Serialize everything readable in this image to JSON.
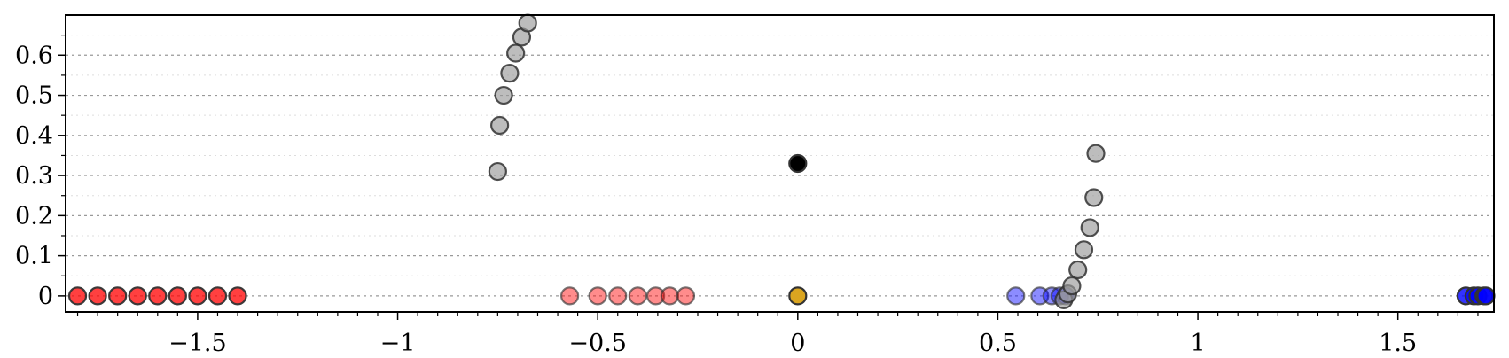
{
  "chart_data": {
    "type": "scatter",
    "title": "",
    "xlabel": "",
    "ylabel": "",
    "xlim": [
      -1.83,
      1.74
    ],
    "ylim": [
      -0.04,
      0.7
    ],
    "grid": "horizontal dotted",
    "x_ticks": [
      -1.5,
      -1,
      -0.5,
      0,
      0.5,
      1,
      1.5
    ],
    "x_tick_labels": [
      "−1.5",
      "−1",
      "−0.5",
      "0",
      "0.5",
      "1",
      "1.5"
    ],
    "y_ticks": [
      0,
      0.1,
      0.2,
      0.3,
      0.4,
      0.5,
      0.6
    ],
    "y_tick_labels": [
      "0",
      "0.1",
      "0.2",
      "0.3",
      "0.4",
      "0.5",
      "0.6"
    ],
    "series": [
      {
        "color": "#ff0000",
        "opacity": 0.75,
        "points": [
          [
            -1.8,
            0
          ],
          [
            -1.75,
            0
          ],
          [
            -1.7,
            0
          ],
          [
            -1.65,
            0
          ],
          [
            -1.6,
            0
          ],
          [
            -1.55,
            0
          ],
          [
            -1.5,
            0
          ],
          [
            -1.45,
            0
          ],
          [
            -1.4,
            0
          ]
        ]
      },
      {
        "color": "#ff0000",
        "opacity": 0.45,
        "points": [
          [
            -0.57,
            0
          ],
          [
            -0.5,
            0
          ],
          [
            -0.45,
            0
          ],
          [
            -0.4,
            0
          ],
          [
            -0.355,
            0
          ],
          [
            -0.32,
            0
          ],
          [
            -0.28,
            0
          ]
        ]
      },
      {
        "color": "#0000ff",
        "opacity": 0.45,
        "points": [
          [
            0.545,
            0
          ],
          [
            0.605,
            0
          ],
          [
            0.635,
            0
          ],
          [
            0.655,
            0
          ],
          [
            0.67,
            0
          ]
        ]
      },
      {
        "color": "#0000ff",
        "opacity": 0.8,
        "points": [
          [
            1.67,
            0
          ],
          [
            1.69,
            0
          ],
          [
            1.7,
            0
          ],
          [
            1.715,
            0
          ],
          [
            1.72,
            0
          ]
        ]
      },
      {
        "color": "#999999",
        "opacity": 0.65,
        "points": [
          [
            -0.75,
            0.31
          ],
          [
            -0.745,
            0.425
          ],
          [
            -0.735,
            0.5
          ],
          [
            -0.72,
            0.555
          ],
          [
            -0.705,
            0.605
          ],
          [
            -0.69,
            0.645
          ],
          [
            -0.675,
            0.68
          ],
          [
            0.665,
            -0.01
          ],
          [
            0.675,
            0.005
          ],
          [
            0.685,
            0.025
          ],
          [
            0.7,
            0.065
          ],
          [
            0.715,
            0.115
          ],
          [
            0.73,
            0.17
          ],
          [
            0.74,
            0.245
          ],
          [
            0.745,
            0.355
          ]
        ]
      },
      {
        "color": "#000000",
        "opacity": 1.0,
        "points": [
          [
            0,
            0.33
          ]
        ]
      },
      {
        "color": "#daa520",
        "opacity": 1.0,
        "points": [
          [
            0,
            0
          ]
        ]
      }
    ]
  }
}
